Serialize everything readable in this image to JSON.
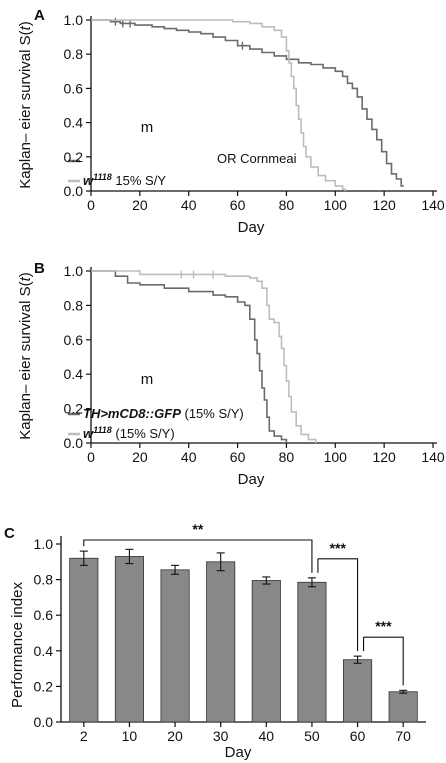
{
  "colors": {
    "dark": "#6b6b6b",
    "light": "#bdbdbd",
    "bar": "#888888"
  },
  "chart_data": [
    {
      "type": "line",
      "panel": "A",
      "xlabel": "Day",
      "ylabel": "Kaplan– eier survival S(t)",
      "ylabel_parts": [
        "Kaplan– ",
        "eier survival S(",
        "t",
        ")"
      ],
      "xlim": [
        0,
        140
      ],
      "ylim": [
        0,
        1
      ],
      "xticks": [
        0,
        20,
        40,
        60,
        80,
        100,
        120,
        140
      ],
      "yticks": [
        "0.0",
        "0.2",
        "0.4",
        "0.6",
        "0.8",
        "1.0"
      ],
      "stray_label": "m",
      "annotation": "OR Cornmeai",
      "series": [
        {
          "name": "",
          "color": "dark",
          "censor": [
            10,
            13,
            16,
            62
          ],
          "points": [
            [
              0,
              1.0
            ],
            [
              8,
              0.99
            ],
            [
              12,
              0.98
            ],
            [
              18,
              0.97
            ],
            [
              25,
              0.96
            ],
            [
              30,
              0.95
            ],
            [
              35,
              0.94
            ],
            [
              40,
              0.93
            ],
            [
              45,
              0.92
            ],
            [
              50,
              0.9
            ],
            [
              55,
              0.88
            ],
            [
              60,
              0.85
            ],
            [
              65,
              0.83
            ],
            [
              70,
              0.81
            ],
            [
              75,
              0.79
            ],
            [
              80,
              0.77
            ],
            [
              85,
              0.75
            ],
            [
              90,
              0.74
            ],
            [
              95,
              0.72
            ],
            [
              100,
              0.7
            ],
            [
              103,
              0.67
            ],
            [
              105,
              0.63
            ],
            [
              107,
              0.6
            ],
            [
              109,
              0.55
            ],
            [
              111,
              0.48
            ],
            [
              113,
              0.42
            ],
            [
              115,
              0.36
            ],
            [
              117,
              0.3
            ],
            [
              119,
              0.23
            ],
            [
              121,
              0.16
            ],
            [
              123,
              0.1
            ],
            [
              125,
              0.07
            ],
            [
              127,
              0.03
            ],
            [
              128,
              0.03
            ]
          ]
        },
        {
          "name_parts": [
            "w",
            "1118",
            " 15% S/Y"
          ],
          "color": "light",
          "censor": [],
          "points": [
            [
              0,
              1.0
            ],
            [
              50,
              1.0
            ],
            [
              58,
              0.99
            ],
            [
              65,
              0.98
            ],
            [
              70,
              0.96
            ],
            [
              75,
              0.94
            ],
            [
              78,
              0.9
            ],
            [
              80,
              0.82
            ],
            [
              81,
              0.75
            ],
            [
              82,
              0.67
            ],
            [
              83,
              0.6
            ],
            [
              84,
              0.5
            ],
            [
              85,
              0.42
            ],
            [
              86,
              0.34
            ],
            [
              87,
              0.26
            ],
            [
              88,
              0.2
            ],
            [
              90,
              0.14
            ],
            [
              93,
              0.09
            ],
            [
              96,
              0.06
            ],
            [
              100,
              0.03
            ],
            [
              103,
              0.01
            ],
            [
              104,
              0.0
            ]
          ]
        }
      ]
    },
    {
      "type": "line",
      "panel": "B",
      "xlabel": "Day",
      "ylabel": "Kaplan– eier survival S(t)",
      "ylabel_parts": [
        "Kaplan– ",
        "eier survival S(",
        "t",
        ")"
      ],
      "xlim": [
        0,
        140
      ],
      "ylim": [
        0,
        1
      ],
      "xticks": [
        0,
        20,
        40,
        60,
        80,
        100,
        120,
        140
      ],
      "yticks": [
        "0.0",
        "0.2",
        "0.4",
        "0.6",
        "0.8",
        "1.0"
      ],
      "stray_label": "m",
      "series": [
        {
          "name_parts": [
            "TH>mCD8::GFP",
            " (15% S/Y)"
          ],
          "color": "dark",
          "censor": [],
          "points": [
            [
              0,
              1.0
            ],
            [
              10,
              0.97
            ],
            [
              15,
              0.93
            ],
            [
              20,
              0.92
            ],
            [
              30,
              0.9
            ],
            [
              40,
              0.88
            ],
            [
              50,
              0.86
            ],
            [
              55,
              0.85
            ],
            [
              60,
              0.82
            ],
            [
              63,
              0.8
            ],
            [
              65,
              0.72
            ],
            [
              67,
              0.6
            ],
            [
              68,
              0.52
            ],
            [
              69,
              0.42
            ],
            [
              70,
              0.32
            ],
            [
              71,
              0.25
            ],
            [
              72,
              0.15
            ],
            [
              73,
              0.07
            ],
            [
              75,
              0.04
            ],
            [
              78,
              0.02
            ],
            [
              80,
              0.0
            ]
          ]
        },
        {
          "name_parts": [
            "w",
            "1118",
            " (15% S/Y)"
          ],
          "color": "light",
          "censor": [
            37,
            42,
            50
          ],
          "points": [
            [
              0,
              1.0
            ],
            [
              20,
              0.98
            ],
            [
              55,
              0.97
            ],
            [
              65,
              0.96
            ],
            [
              68,
              0.94
            ],
            [
              70,
              0.9
            ],
            [
              72,
              0.8
            ],
            [
              73,
              0.72
            ],
            [
              75,
              0.7
            ],
            [
              77,
              0.62
            ],
            [
              78,
              0.55
            ],
            [
              79,
              0.45
            ],
            [
              80,
              0.36
            ],
            [
              81,
              0.27
            ],
            [
              82,
              0.18
            ],
            [
              84,
              0.1
            ],
            [
              86,
              0.05
            ],
            [
              89,
              0.02
            ],
            [
              92,
              0.0
            ]
          ]
        }
      ]
    },
    {
      "type": "bar",
      "panel": "C",
      "xlabel": "Day",
      "ylabel": "Performance index",
      "ylim": [
        0,
        1
      ],
      "yticks": [
        "0.0",
        "0.2",
        "0.4",
        "0.6",
        "0.8",
        "1.0"
      ],
      "categories": [
        "2",
        "10",
        "20",
        "30",
        "40",
        "50",
        "60",
        "70"
      ],
      "values": [
        0.92,
        0.93,
        0.855,
        0.9,
        0.795,
        0.785,
        0.35,
        0.17
      ],
      "errors": [
        0.04,
        0.04,
        0.025,
        0.05,
        0.02,
        0.025,
        0.02,
        0.008
      ],
      "significance": [
        {
          "from": 0,
          "to": 5,
          "label": "**"
        },
        {
          "from": 5,
          "to": 6,
          "label": "***"
        },
        {
          "from": 6,
          "to": 7,
          "label": "***"
        }
      ]
    }
  ]
}
